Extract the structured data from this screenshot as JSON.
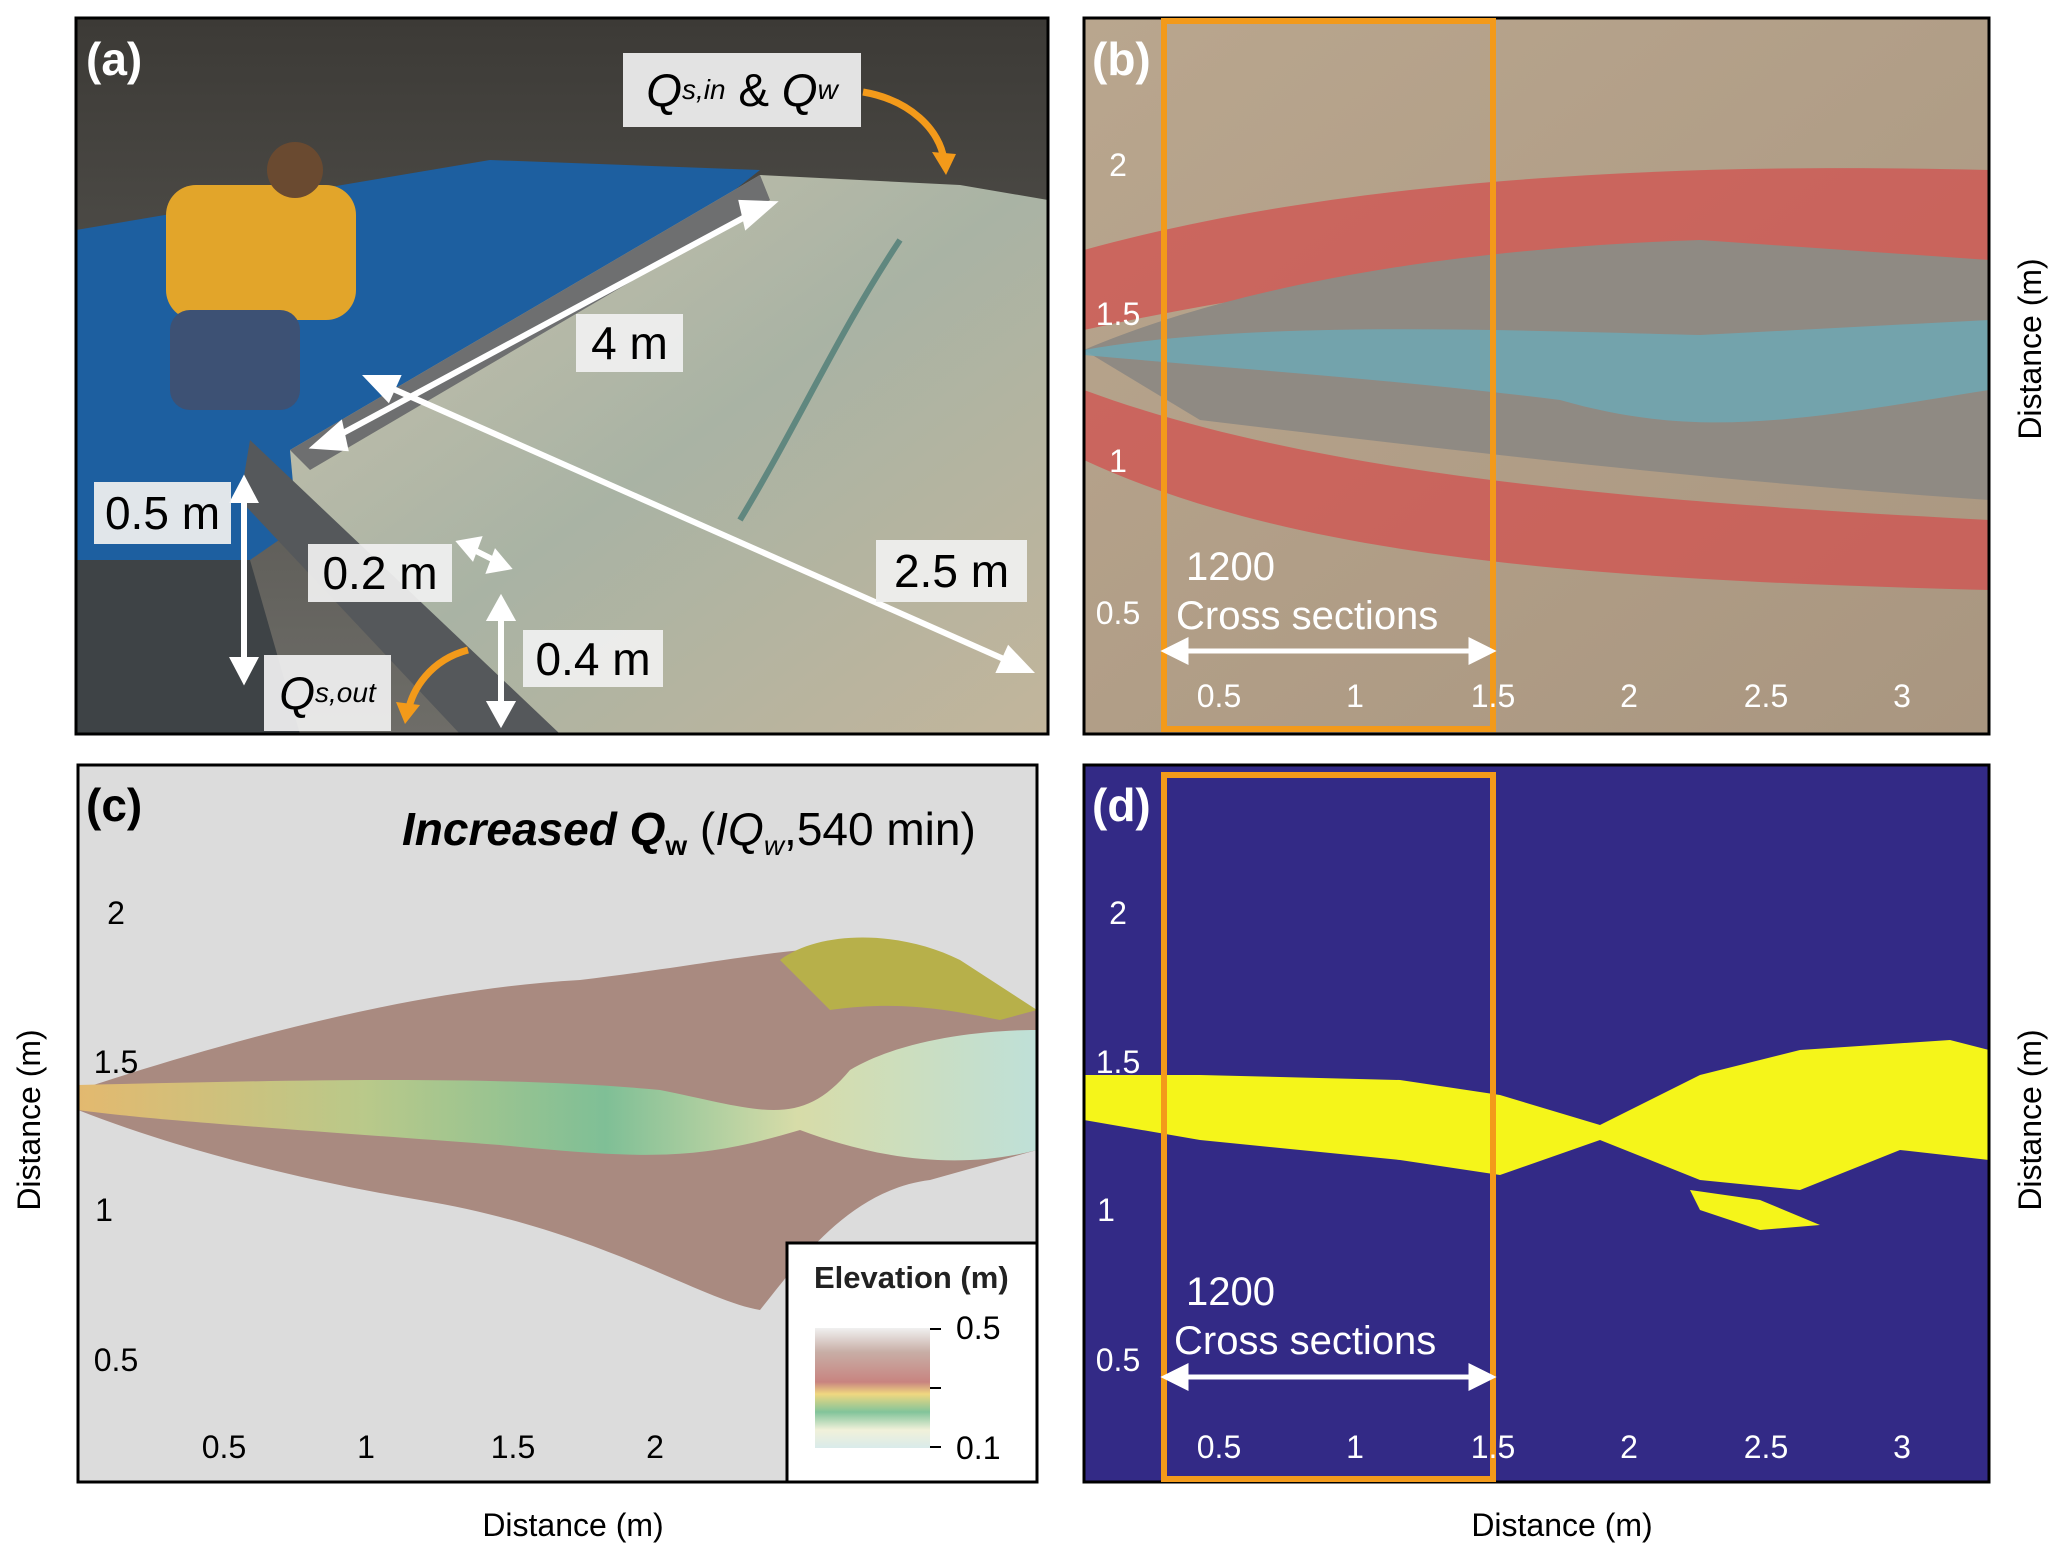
{
  "panels": {
    "a": {
      "label": "(a)",
      "inflow": {
        "q": "Q",
        "q_sub": "s,in",
        "amp": "&",
        "qw": "Q",
        "qw_sub": "w"
      },
      "outflow": {
        "q": "Q",
        "q_sub": "s,out"
      },
      "dimensions": {
        "length": "4 m",
        "width": "2.5 m",
        "depth": "0.5 m",
        "outlet_width": "0.2 m",
        "outlet_depth": "0.4 m"
      }
    },
    "b": {
      "label": "(b)",
      "y_ticks": [
        "2",
        "1.5",
        "1",
        "0.5"
      ],
      "x_ticks": [
        "0.5",
        "1",
        "1.5",
        "2",
        "2.5",
        "3"
      ],
      "y_label": "Distance (m)",
      "annotation_count": "1200",
      "annotation_text": "Cross sections"
    },
    "c": {
      "label": "(c)",
      "title": {
        "bold": "Increased Q",
        "bold_sub": "w",
        "open": "(",
        "code": "IQ",
        "code_sub": "w",
        "rest": ",540 min)"
      },
      "y_ticks": [
        "2",
        "1.5",
        "1",
        "0.5"
      ],
      "x_ticks": [
        "0.5",
        "1",
        "1.5",
        "2"
      ],
      "x_label": "Distance (m)",
      "y_label": "Distance (m)",
      "legend": {
        "title": "Elevation (m)",
        "max": "0.5",
        "min": "0.1"
      }
    },
    "d": {
      "label": "(d)",
      "y_ticks": [
        "2",
        "1.5",
        "1",
        "0.5"
      ],
      "x_ticks": [
        "0.5",
        "1",
        "1.5",
        "2",
        "2.5",
        "3"
      ],
      "x_label": "Distance (m)",
      "y_label": "Distance (m)",
      "annotation_count": "1200",
      "annotation_text": "Cross sections"
    }
  },
  "colors": {
    "highlight_box": "#f39a1a",
    "mask_background": "#332a86",
    "mask_channel": "#f5f51a",
    "arrow_white": "#ffffff"
  }
}
